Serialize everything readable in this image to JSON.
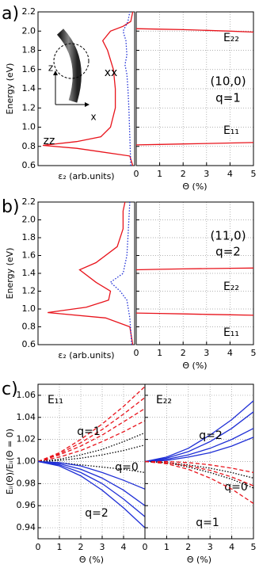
{
  "chart_data": [
    {
      "type": "line",
      "panel": "a)",
      "ylabel": "Energy (eV)",
      "xlabel": "ε₂ (arb.units)",
      "ylim": [
        0.6,
        2.2
      ],
      "yticks": [
        0.6,
        0.8,
        {
          "value": 1,
          "label": "1.0"
        },
        1.2,
        1.4,
        1.6,
        1.8,
        {
          "value": 2,
          "label": "2.0"
        },
        2.2
      ],
      "ytick_labels": true,
      "grid": false,
      "xlim": [
        1,
        0
      ],
      "series": [
        {
          "name": "zz",
          "color": "#e8131b",
          "style": "solid",
          "x": [
            0.02,
            0.05,
            0.6,
            0.95,
            0.6,
            0.35,
            0.25,
            0.2,
            0.2,
            0.22,
            0.28,
            0.33,
            0.25,
            0.12,
            0.04,
            0.02
          ],
          "values": [
            0.6,
            0.7,
            0.78,
            0.81,
            0.85,
            0.9,
            1.0,
            1.2,
            1.4,
            1.6,
            1.8,
            1.9,
            2.0,
            2.05,
            2.1,
            2.2
          ]
        },
        {
          "name": "xx",
          "color": "#1f2fd6",
          "style": "dotted",
          "x": [
            0.04,
            0.05,
            0.06,
            0.07,
            0.08,
            0.1,
            0.08,
            0.09,
            0.12,
            0.07,
            0.05
          ],
          "values": [
            0.6,
            0.9,
            1.2,
            1.4,
            1.55,
            1.65,
            1.75,
            1.9,
            2.0,
            2.1,
            2.2
          ]
        }
      ],
      "annotations": [
        {
          "text": "z",
          "color": "#000000"
        },
        {
          "text": "x",
          "color": "#000000"
        }
      ]
    },
    {
      "type": "line",
      "xlabel": "Θ (%)",
      "ylim": [
        0.6,
        2.2
      ],
      "yticks": [
        0.6,
        0.8,
        1,
        1.2,
        1.4,
        1.6,
        1.8,
        2,
        2.2
      ],
      "ytick_labels": false,
      "grid": true,
      "xlim": [
        0,
        5
      ],
      "xticks": [
        0,
        1,
        2,
        3,
        4,
        5
      ],
      "x": [
        0,
        1,
        2,
        3,
        4,
        5
      ],
      "series": [
        {
          "name": "E₂₂",
          "color": "#e8131b",
          "label_color": "#2a9a2a",
          "style": "solid",
          "values": [
            2.025,
            2.02,
            2.015,
            2.008,
            2.0,
            1.99
          ]
        },
        {
          "name": "E₁₁",
          "color": "#e8131b",
          "label_color": "#000000",
          "style": "solid",
          "values": [
            0.815,
            0.82,
            0.825,
            0.83,
            0.835,
            0.84
          ]
        }
      ],
      "annotations": [
        {
          "text": "(10,0)",
          "color": "#e8131b"
        },
        {
          "text": "q=1",
          "color": "#e8131b"
        }
      ]
    },
    {
      "type": "line",
      "panel": "b)",
      "ylabel": "Energy (eV)",
      "xlabel": "ε₂ (arb.units)",
      "ylim": [
        0.6,
        2.2
      ],
      "yticks": [
        0.6,
        0.8,
        {
          "value": 1,
          "label": "1.0"
        },
        1.2,
        1.4,
        1.6,
        1.8,
        {
          "value": 2,
          "label": "2.0"
        },
        2.2
      ],
      "ytick_labels": true,
      "grid": false,
      "xlim": [
        1,
        0
      ],
      "series": [
        {
          "color": "#e8131b",
          "style": "solid",
          "x": [
            0.02,
            0.05,
            0.3,
            0.9,
            0.5,
            0.27,
            0.25,
            0.4,
            0.57,
            0.4,
            0.18,
            0.12,
            0.12,
            0.12,
            0.1
          ],
          "values": [
            0.6,
            0.8,
            0.9,
            0.96,
            1.02,
            1.1,
            1.2,
            1.3,
            1.44,
            1.52,
            1.7,
            1.9,
            2.0,
            2.1,
            2.2
          ]
        },
        {
          "color": "#1f2fd6",
          "style": "dotted",
          "x": [
            0.03,
            0.05,
            0.08,
            0.15,
            0.25,
            0.12,
            0.08,
            0.07,
            0.06,
            0.05
          ],
          "values": [
            0.6,
            0.9,
            1.1,
            1.2,
            1.3,
            1.4,
            1.6,
            1.8,
            2.0,
            2.2
          ]
        }
      ]
    },
    {
      "type": "line",
      "xlabel": "Θ (%)",
      "ylim": [
        0.6,
        2.2
      ],
      "yticks": [
        0.6,
        0.8,
        1,
        1.2,
        1.4,
        1.6,
        1.8,
        2,
        2.2
      ],
      "ytick_labels": false,
      "grid": true,
      "xlim": [
        0,
        5
      ],
      "xticks": [
        0,
        1,
        2,
        3,
        4,
        5
      ],
      "x": [
        0,
        1,
        2,
        3,
        4,
        5
      ],
      "series": [
        {
          "name": "E₂₂",
          "color": "#e8131b",
          "label_color": "#2a9a2a",
          "style": "solid",
          "values": [
            1.44,
            1.445,
            1.45,
            1.453,
            1.457,
            1.46
          ]
        },
        {
          "name": "E₁₁",
          "color": "#e8131b",
          "label_color": "#000000",
          "style": "solid",
          "values": [
            0.955,
            0.95,
            0.945,
            0.94,
            0.935,
            0.93
          ]
        }
      ],
      "annotations": [
        {
          "text": "(11,0)",
          "color": "#1f2fd6"
        },
        {
          "text": "q=2",
          "color": "#1f2fd6"
        }
      ]
    },
    {
      "type": "line",
      "panel": "c)",
      "title": "E₁₁",
      "ylabel": "Eᵢᵢ(Θ)/Eᵢᵢ(Θ = 0)",
      "xlabel": "Θ (%)",
      "ylim": [
        0.93,
        1.07
      ],
      "yticks": [
        0.94,
        0.96,
        0.98,
        {
          "value": 1,
          "label": "1.00"
        },
        1.02,
        1.04,
        1.06
      ],
      "ytick_labels": true,
      "grid": true,
      "xlim": [
        0,
        5
      ],
      "xticks": [
        0,
        1,
        2,
        3,
        4
      ],
      "x": [
        0,
        1,
        2,
        3,
        4,
        5
      ],
      "groups": [
        {
          "label": "q=1",
          "color": "#e8131b",
          "style": "dashed",
          "lines": [
            [
              1.0,
              1.008,
              1.02,
              1.034,
              1.05,
              1.068
            ],
            [
              1.0,
              1.007,
              1.017,
              1.029,
              1.043,
              1.058
            ],
            [
              1.0,
              1.006,
              1.014,
              1.024,
              1.036,
              1.048
            ],
            [
              1.0,
              1.004,
              1.01,
              1.018,
              1.027,
              1.037
            ]
          ]
        },
        {
          "label": "q=0",
          "color": "#000000",
          "style": "dotted",
          "lines": [
            [
              1.0,
              1.002,
              1.006,
              1.011,
              1.018,
              1.026
            ],
            [
              1.0,
              1.001,
              1.003,
              1.006,
              1.01,
              1.015
            ],
            [
              1.0,
              0.999,
              0.997,
              0.995,
              0.993,
              0.99
            ]
          ]
        },
        {
          "label": "q=2",
          "color": "#1f2fd6",
          "style": "solid",
          "lines": [
            [
              1.0,
              0.998,
              0.993,
              0.985,
              0.974,
              0.96
            ],
            [
              1.0,
              0.997,
              0.99,
              0.98,
              0.966,
              0.95
            ],
            [
              1.0,
              0.996,
              0.987,
              0.974,
              0.958,
              0.94
            ],
            [
              1.0,
              0.999,
              0.996,
              0.99,
              0.983,
              0.975
            ]
          ]
        }
      ]
    },
    {
      "type": "line",
      "title": "E₂₂",
      "xlabel": "Θ (%)",
      "ylim": [
        0.93,
        1.07
      ],
      "yticks": [
        0.94,
        0.96,
        0.98,
        1,
        1.02,
        1.04,
        1.06
      ],
      "ytick_labels": false,
      "grid": true,
      "xlim": [
        0,
        5
      ],
      "xticks": [
        0,
        1,
        2,
        3,
        4,
        5
      ],
      "x": [
        0,
        1,
        2,
        3,
        4,
        5
      ],
      "groups": [
        {
          "label": "q=2",
          "color": "#1f2fd6",
          "style": "solid",
          "lines": [
            [
              1.0,
              1.003,
              1.009,
              1.018,
              1.03,
              1.045
            ],
            [
              1.0,
              1.002,
              1.006,
              1.012,
              1.02,
              1.03
            ],
            [
              1.0,
              1.001,
              1.004,
              1.008,
              1.014,
              1.022
            ],
            [
              1.0,
              1.004,
              1.012,
              1.024,
              1.038,
              1.055
            ]
          ]
        },
        {
          "label": "q=0",
          "color": "#000000",
          "style": "dotted",
          "lines": [
            [
              1.0,
              0.999,
              0.997,
              0.994,
              0.99,
              0.985
            ],
            [
              1.0,
              0.999,
              0.995,
              0.99,
              0.984,
              0.976
            ]
          ]
        },
        {
          "label": "q=1",
          "color": "#e8131b",
          "style": "dashed",
          "lines": [
            [
              1.0,
              0.999,
              0.996,
              0.992,
              0.986,
              0.978
            ],
            [
              1.0,
              0.998,
              0.993,
              0.985,
              0.975,
              0.962
            ],
            [
              1.0,
              1.0,
              0.999,
              0.997,
              0.994,
              0.99
            ]
          ]
        }
      ]
    }
  ]
}
